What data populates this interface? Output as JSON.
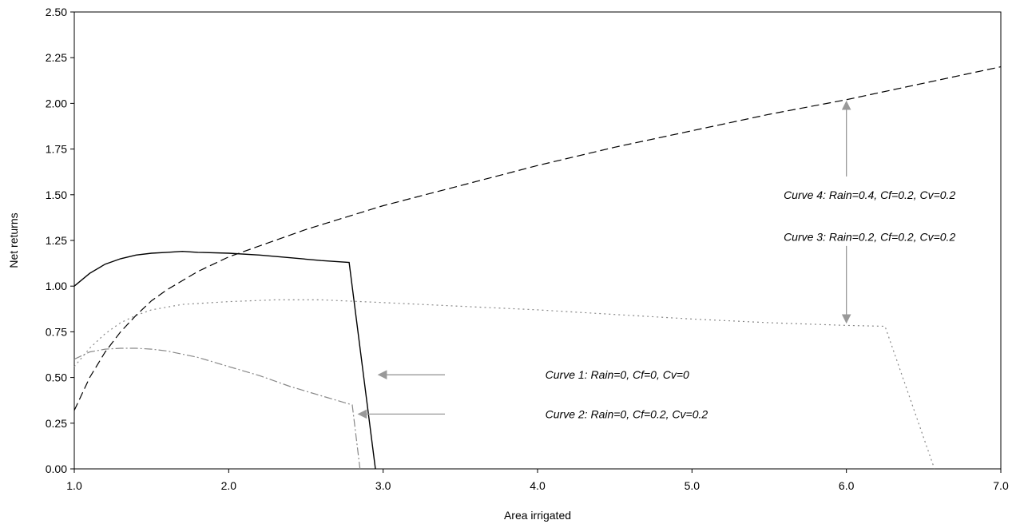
{
  "chart_data": {
    "type": "line",
    "xlabel": "Area irrigated",
    "ylabel": "Net returns",
    "xlim": [
      1.0,
      7.0
    ],
    "ylim": [
      0.0,
      2.5
    ],
    "x_ticks": [
      "1.0",
      "2.0",
      "3.0",
      "4.0",
      "5.0",
      "6.0",
      "7.0"
    ],
    "y_ticks": [
      "0.00",
      "0.25",
      "0.50",
      "0.75",
      "1.00",
      "1.25",
      "1.50",
      "1.75",
      "2.00",
      "2.25",
      "2.50"
    ],
    "grid": false,
    "series": [
      {
        "name": "Curve 1: Rain=0, Cf=0, Cv=0",
        "style": "solid",
        "color": "#000000",
        "x": [
          1.0,
          1.1,
          1.2,
          1.3,
          1.4,
          1.5,
          1.6,
          1.7,
          1.8,
          2.0,
          2.2,
          2.4,
          2.6,
          2.78,
          2.95
        ],
        "y": [
          1.0,
          1.07,
          1.12,
          1.15,
          1.17,
          1.18,
          1.185,
          1.19,
          1.185,
          1.18,
          1.17,
          1.155,
          1.14,
          1.13,
          0.0
        ]
      },
      {
        "name": "Curve 2: Rain=0, Cf=0.2, Cv=0.2",
        "style": "dash-dot",
        "color": "#888888",
        "x": [
          1.0,
          1.1,
          1.2,
          1.3,
          1.4,
          1.5,
          1.6,
          1.8,
          2.0,
          2.2,
          2.4,
          2.6,
          2.8,
          2.85
        ],
        "y": [
          0.6,
          0.64,
          0.655,
          0.66,
          0.66,
          0.655,
          0.645,
          0.61,
          0.56,
          0.51,
          0.45,
          0.4,
          0.35,
          0.0
        ]
      },
      {
        "name": "Curve 3: Rain=0.2, Cf=0.2, Cv=0.2",
        "style": "dotted",
        "color": "#888888",
        "x": [
          1.0,
          1.1,
          1.2,
          1.3,
          1.4,
          1.5,
          1.7,
          2.0,
          2.3,
          2.6,
          3.0,
          3.5,
          4.0,
          4.5,
          5.0,
          5.5,
          6.0,
          6.25,
          6.57
        ],
        "y": [
          0.56,
          0.66,
          0.74,
          0.8,
          0.84,
          0.87,
          0.9,
          0.915,
          0.925,
          0.925,
          0.91,
          0.89,
          0.87,
          0.845,
          0.82,
          0.8,
          0.785,
          0.78,
          0.0
        ]
      },
      {
        "name": "Curve 4: Rain=0.4, Cf=0.2, Cv=0.2",
        "style": "dashed",
        "color": "#000000",
        "x": [
          1.0,
          1.1,
          1.2,
          1.3,
          1.4,
          1.5,
          1.6,
          1.8,
          2.0,
          2.5,
          3.0,
          3.5,
          4.0,
          4.5,
          5.0,
          5.5,
          6.0,
          6.5,
          7.0
        ],
        "y": [
          0.32,
          0.5,
          0.64,
          0.75,
          0.84,
          0.92,
          0.98,
          1.08,
          1.16,
          1.31,
          1.44,
          1.55,
          1.66,
          1.76,
          1.85,
          1.94,
          2.02,
          2.11,
          2.2
        ]
      }
    ],
    "annotations": [
      {
        "text": "Curve 1: Rain=0, Cf=0, Cv=0",
        "label_at": [
          4.05,
          0.515
        ],
        "arrow_from": [
          3.4,
          0.515
        ],
        "arrow_to": [
          2.97,
          0.515
        ]
      },
      {
        "text": "Curve 2: Rain=0, Cf=0.2, Cv=0.2",
        "label_at": [
          4.05,
          0.3
        ],
        "arrow_from": [
          3.4,
          0.3
        ],
        "arrow_to": [
          2.84,
          0.3
        ]
      },
      {
        "text": "Curve 3: Rain=0.2, Cf=0.2, Cv=0.2",
        "label_at": [
          6.15,
          1.27
        ],
        "arrow_from": [
          6.0,
          1.22
        ],
        "arrow_to": [
          6.0,
          0.8
        ]
      },
      {
        "text": "Curve 4: Rain=0.4, Cf=0.2, Cv=0.2",
        "label_at": [
          6.15,
          1.5
        ],
        "arrow_from": [
          6.0,
          1.6
        ],
        "arrow_to": [
          6.0,
          2.01
        ]
      }
    ]
  }
}
